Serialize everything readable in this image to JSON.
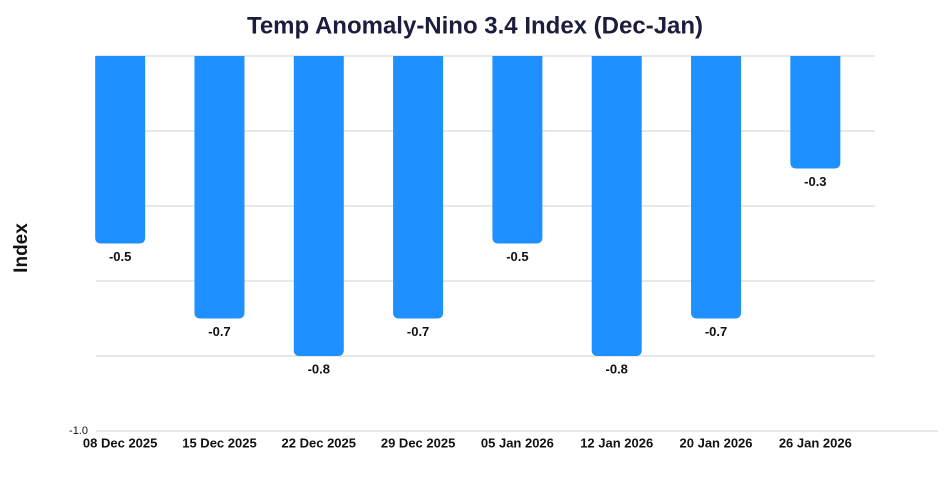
{
  "chart_data": {
    "type": "bar",
    "title": "Temp Anomaly-Nino 3.4 Index (Dec-Jan)",
    "y_label": "Index",
    "categories": [
      "08 Dec 2025",
      "15 Dec 2025",
      "22 Dec 2025",
      "29 Dec 2025",
      "05 Jan 2026",
      "12 Jan 2026",
      "20 Jan 2026",
      "26 Jan 2026"
    ],
    "values": [
      -0.5,
      -0.7,
      -0.8,
      -0.7,
      -0.5,
      -0.8,
      -0.7,
      -0.3
    ],
    "color": "#1e90ff",
    "ylim": [
      -1,
      0
    ],
    "yticks": [
      0,
      -0.2,
      -0.4,
      -0.6,
      -0.8,
      {
        "value": -1,
        "label": "-1.0"
      }
    ],
    "grid": true
  }
}
